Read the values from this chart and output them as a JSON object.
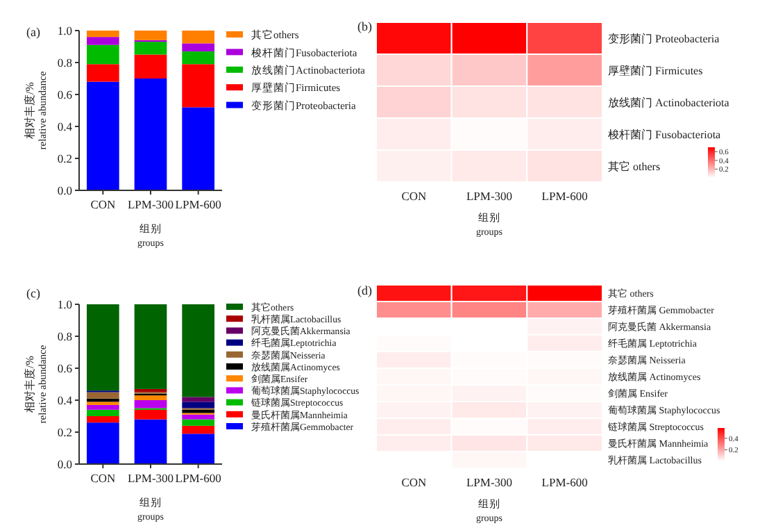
{
  "chart_data": [
    {
      "type": "bar",
      "stacked": true,
      "title": "(a)",
      "xlabel": "组别\ngroups",
      "ylabel": "相对丰度/%\nrelative abundance",
      "categories": [
        "CON",
        "LPM-300",
        "LPM-600"
      ],
      "ylim": [
        0,
        1
      ],
      "yticks": [
        {
          "value": 0,
          "label": "0.0"
        },
        {
          "value": 0.2,
          "label": "0.2"
        },
        {
          "value": 0.4,
          "label": "0.4"
        },
        {
          "value": 0.6,
          "label": "0.6"
        },
        {
          "value": 0.8,
          "label": "0.8"
        },
        {
          "value": 1,
          "label": "1.0"
        }
      ],
      "legend": "right",
      "series": [
        {
          "name": "变形菌门Proteobacteria",
          "color": "#0000ff",
          "values": [
            0.68,
            0.7,
            0.52
          ]
        },
        {
          "name": "厚壁菌门Firmicutes",
          "color": "#ff0000",
          "values": [
            0.11,
            0.15,
            0.27
          ]
        },
        {
          "name": "放线菌门Actinobacteriota",
          "color": "#00bb00",
          "values": [
            0.12,
            0.08,
            0.08
          ]
        },
        {
          "name": "梭杆菌门Fusobacteriota",
          "color": "#aa00dd",
          "values": [
            0.05,
            0.01,
            0.05
          ]
        },
        {
          "name": "其它others",
          "color": "#ff8000",
          "values": [
            0.04,
            0.06,
            0.08
          ]
        }
      ]
    },
    {
      "type": "heatmap",
      "title": "(b)",
      "xlabel": "组别\ngroups",
      "categories": [
        "CON",
        "LPM-300",
        "LPM-600"
      ],
      "y_categories": [
        "变形菌门 Proteobacteria",
        "厚壁菌门 Firmicutes",
        "放线菌门 Actinobacteriota",
        "梭杆菌门 Fusobacteriota",
        "其它 others"
      ],
      "cells": [
        [
          0.68,
          0.7,
          0.52
        ],
        [
          0.11,
          0.15,
          0.27
        ],
        [
          0.12,
          0.08,
          0.08
        ],
        [
          0.05,
          0.01,
          0.05
        ],
        [
          0.04,
          0.06,
          0.08
        ]
      ],
      "clim": [
        0,
        0.7
      ],
      "cticks": [
        0.2,
        0.4,
        0.6
      ]
    },
    {
      "type": "bar",
      "stacked": true,
      "title": "(c)",
      "xlabel": "组别\ngroups",
      "ylabel": "相对丰度/%\nrelative abundance",
      "categories": [
        "CON",
        "LPM-300",
        "LPM-600"
      ],
      "ylim": [
        0,
        1
      ],
      "yticks": [
        {
          "value": 0,
          "label": "0.0"
        },
        {
          "value": 0.2,
          "label": "0.2"
        },
        {
          "value": 0.4,
          "label": "0.4"
        },
        {
          "value": 0.6,
          "label": "0.6"
        },
        {
          "value": 0.8,
          "label": "0.8"
        },
        {
          "value": 1,
          "label": "1.0"
        }
      ],
      "legend": "right",
      "series": [
        {
          "name": "芽殖杆菌属Gemmobacter",
          "color": "#0000ff",
          "values": [
            0.26,
            0.28,
            0.19
          ]
        },
        {
          "name": "曼氏杆菌属Mannheimia",
          "color": "#ff0000",
          "values": [
            0.04,
            0.06,
            0.05
          ]
        },
        {
          "name": "链球菌属Streptococcus",
          "color": "#00bb00",
          "values": [
            0.04,
            0.01,
            0.04
          ]
        },
        {
          "name": "葡萄球菌属Staphylococcus",
          "color": "#bb00ee",
          "values": [
            0.03,
            0.05,
            0.03
          ]
        },
        {
          "name": "剑菌属Ensifer",
          "color": "#ff8800",
          "values": [
            0.02,
            0.03,
            0.01
          ]
        },
        {
          "name": "放线菌属Actinomyces",
          "color": "#000000",
          "values": [
            0.02,
            0.01,
            0.02
          ]
        },
        {
          "name": "奈瑟菌属Neisseria",
          "color": "#996633",
          "values": [
            0.04,
            0.01,
            0.01
          ]
        },
        {
          "name": "纤毛菌属Leptotrichia",
          "color": "#000080",
          "values": [
            0.01,
            0.0,
            0.04
          ]
        },
        {
          "name": "阿克曼氏菌Akkermansia",
          "color": "#660066",
          "values": [
            0.0,
            0.0,
            0.03
          ]
        },
        {
          "name": "乳杆菌属Lactobacillus",
          "color": "#aa0000",
          "values": [
            0.0,
            0.02,
            0.0
          ]
        },
        {
          "name": "其它others",
          "color": "#006400",
          "values": [
            0.54,
            0.53,
            0.58
          ]
        }
      ]
    },
    {
      "type": "heatmap",
      "title": "(d)",
      "xlabel": "组别\ngroups",
      "categories": [
        "CON",
        "LPM-300",
        "LPM-600"
      ],
      "y_categories": [
        "其它 others",
        "芽殖杆菌属 Gemmobacter",
        "阿克曼氏菌 Akkermansia",
        "纤毛菌属 Leptotrichia",
        "奈瑟菌属 Neisseria",
        "放线菌属 Actinomyces",
        "剑菌属 Ensifer",
        "葡萄球菌属 Staphylococcus",
        "链球菌属 Streptococcus",
        "曼氏杆菌属 Mannheimia",
        "乳杆菌属 Lactobacillus"
      ],
      "cells": [
        [
          0.54,
          0.53,
          0.58
        ],
        [
          0.26,
          0.28,
          0.19
        ],
        [
          0.0,
          0.0,
          0.03
        ],
        [
          0.01,
          0.0,
          0.04
        ],
        [
          0.04,
          0.01,
          0.01
        ],
        [
          0.02,
          0.01,
          0.02
        ],
        [
          0.02,
          0.03,
          0.01
        ],
        [
          0.03,
          0.05,
          0.03
        ],
        [
          0.04,
          0.01,
          0.04
        ],
        [
          0.04,
          0.06,
          0.05
        ],
        [
          0.0,
          0.02,
          0.0
        ]
      ],
      "clim": [
        0,
        0.58
      ],
      "cticks": [
        0.2,
        0.4
      ]
    }
  ]
}
